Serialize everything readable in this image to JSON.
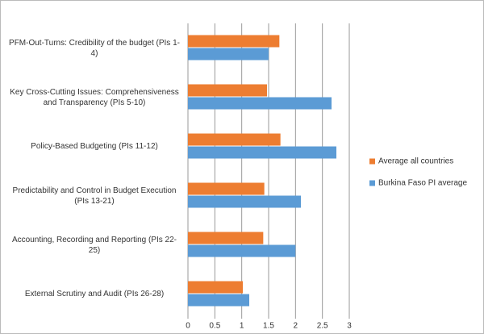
{
  "chart_data": {
    "type": "hbar",
    "categories": [
      "PFM-Out-Turns: Credibility of the budget (PIs 1-4)",
      "Key Cross-Cutting Issues: Comprehensiveness and Transparency (PIs 5-10)",
      "Policy-Based Budgeting (PIs 11-12)",
      "Predictability and Control in Budget Execution (PIs 13-21)",
      "Accounting, Recording and Reporting (PIs 22-25)",
      "External Scrutiny and Audit (PIs 26-28)"
    ],
    "series": [
      {
        "name": "Average all countries",
        "color": "#ed7d31",
        "values": [
          1.7,
          1.47,
          1.72,
          1.42,
          1.4,
          1.02
        ]
      },
      {
        "name": "Burkina Faso PI average",
        "color": "#5b9bd5",
        "values": [
          1.5,
          2.67,
          2.76,
          2.1,
          2.0,
          1.14
        ]
      }
    ],
    "xlim": [
      0,
      3
    ],
    "xticks": [
      0,
      0.5,
      1,
      1.5,
      2,
      2.5,
      3
    ],
    "grid": true,
    "legend": "right"
  }
}
